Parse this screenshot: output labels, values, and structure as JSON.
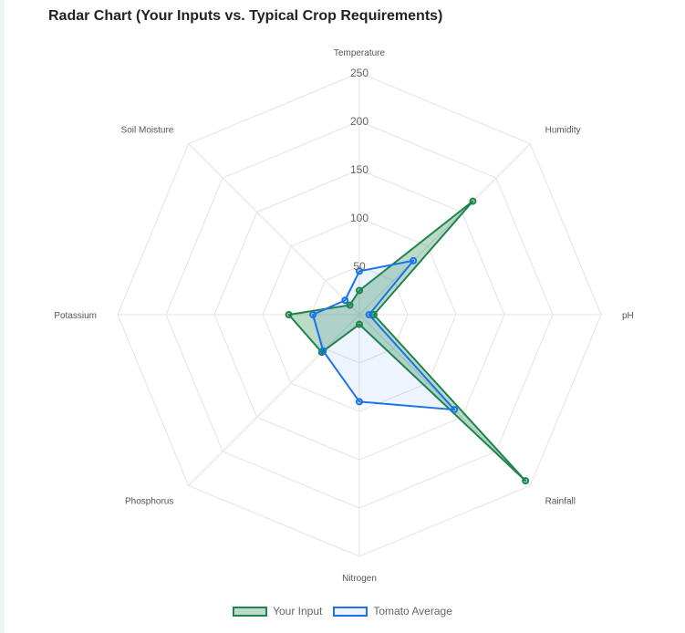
{
  "chart_data": {
    "type": "radar",
    "title": "Radar Chart (Your Inputs vs. Typical Crop Requirements)",
    "axes": [
      "Temperature",
      "Humidity",
      "pH",
      "Rainfall",
      "Nitrogen",
      "Phosphorus",
      "Potassium",
      "Soil Moisture"
    ],
    "r_range": [
      0,
      250
    ],
    "ticks": [
      "50",
      "100",
      "150",
      "200",
      "250"
    ],
    "tick_values": [
      50,
      100,
      150,
      200,
      250
    ],
    "grid": true,
    "legend_position": "bottom",
    "series": [
      {
        "name": "Your Input",
        "values": [
          25,
          166,
          15,
          243,
          10,
          55,
          73,
          14
        ],
        "stroke": "#1e8449",
        "fill": "rgba(30,132,73,0.3)"
      },
      {
        "name": "Tomato Average",
        "values": [
          45,
          79,
          10,
          139,
          90,
          53,
          48,
          21
        ],
        "stroke": "#1a73e8",
        "fill": "rgba(26,115,232,0.08)"
      }
    ]
  }
}
